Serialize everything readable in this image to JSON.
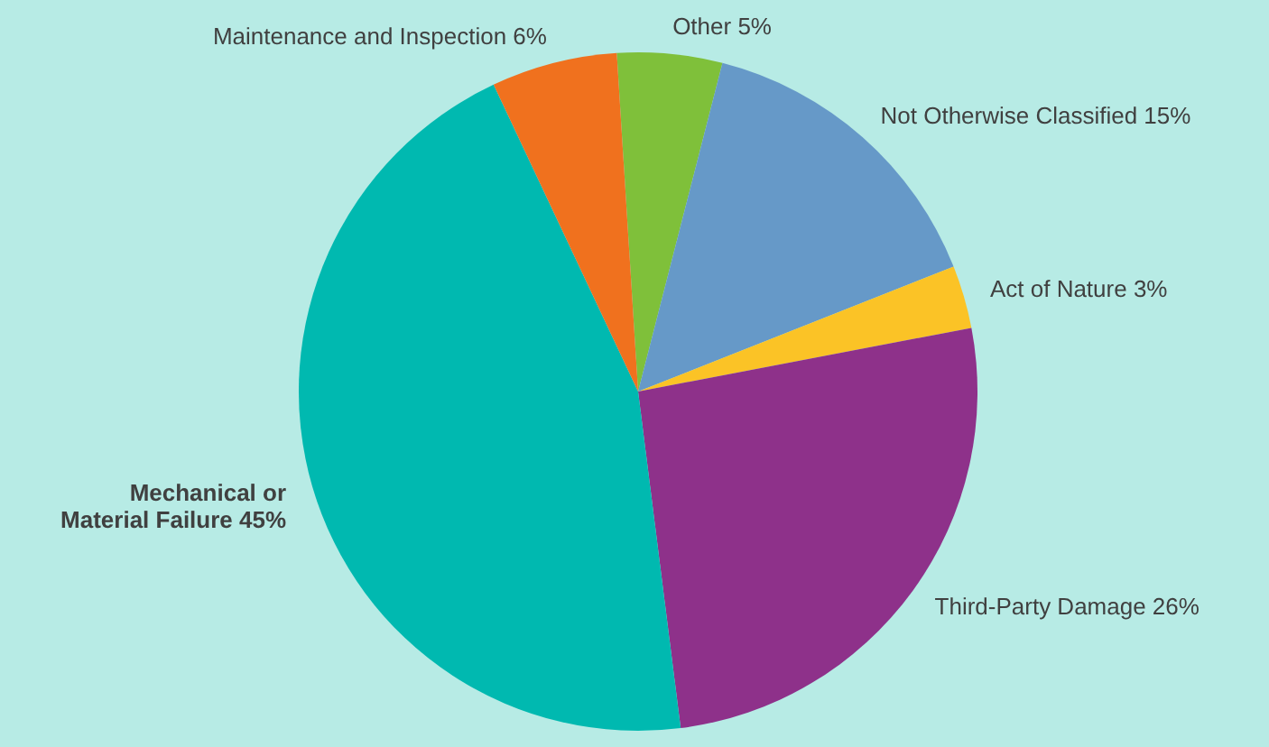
{
  "chart_data": {
    "type": "pie",
    "categories": [
      "Other",
      "Not Otherwise Classified",
      "Act of Nature",
      "Third-Party Damage",
      "Mechanical or\nMaterial Failure",
      "Maintenance and Inspection"
    ],
    "values": [
      5,
      15,
      3,
      26,
      45,
      6
    ],
    "value_labels": [
      "5%",
      "15%",
      "3%",
      "26%",
      "45%",
      "6%"
    ],
    "colors": [
      "#7fc03a",
      "#6699c8",
      "#fbc326",
      "#8e318a",
      "#00b9b0",
      "#f0711e"
    ],
    "legend": false
  }
}
